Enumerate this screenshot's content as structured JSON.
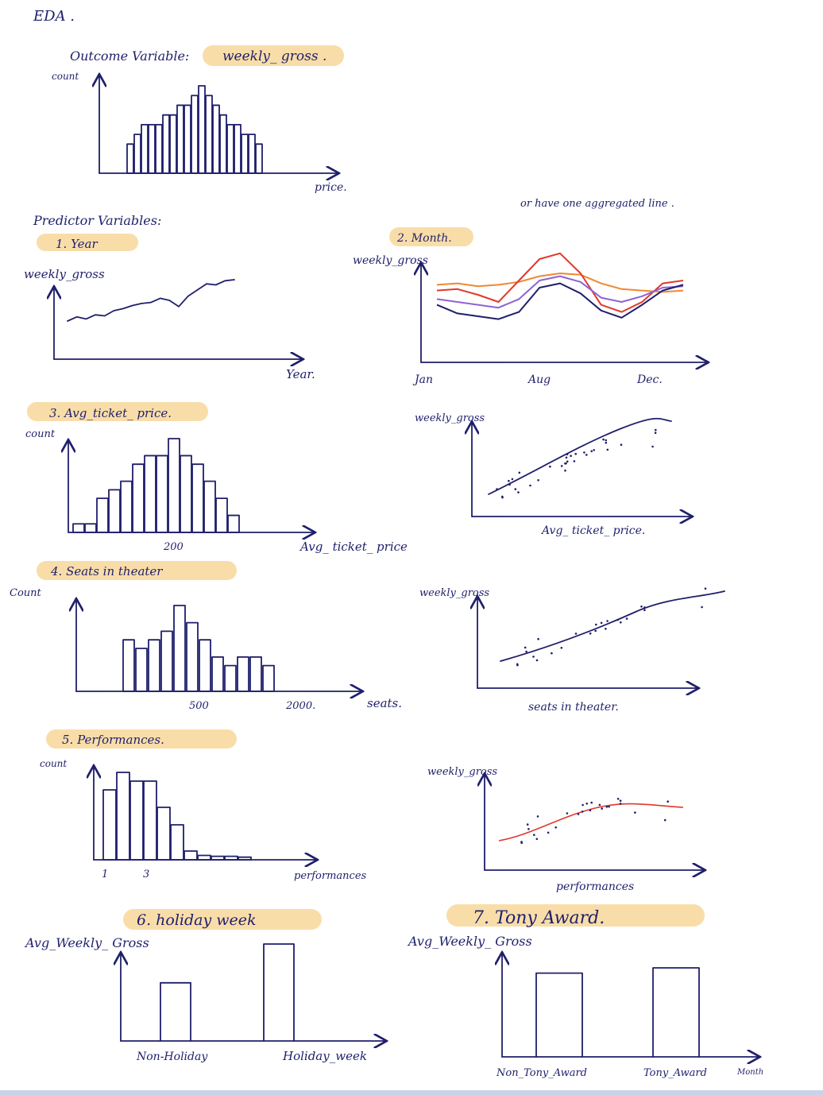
{
  "page": {
    "title": "EDA .",
    "outcome_label": "Outcome Variable:",
    "outcome_value": "weekly_ gross .",
    "predictors_label": "Predictor Variables:",
    "note": "or have one aggregated line ."
  },
  "colors": {
    "ink": "#1f1f6b",
    "highlight": "#f8d79a",
    "red": "#e0392b",
    "orange": "#f0882f",
    "purple": "#8d63d6",
    "navy": "#1f1f6b"
  },
  "chart_data": [
    {
      "id": "outcome-hist",
      "type": "bar",
      "ylabel": "count",
      "xlabel": "price.",
      "values": [
        3,
        4,
        5,
        5,
        5,
        6,
        6,
        7,
        7,
        8,
        9,
        8,
        7,
        6,
        5,
        5,
        4,
        4,
        3
      ]
    },
    {
      "id": "year-line",
      "type": "line",
      "heading": "1. Year",
      "ylabel": "weekly_gross",
      "xlabel": "Year.",
      "values": [
        2.0,
        2.4,
        2.2,
        2.6,
        2.5,
        3.0,
        3.2,
        3.5,
        3.7,
        3.8,
        4.2,
        4.0,
        3.4,
        4.4,
        5.0,
        5.6,
        5.5,
        5.9,
        6.0
      ]
    },
    {
      "id": "month-lines",
      "type": "line",
      "heading": "2. Month.",
      "ylabel": "weekly_gross",
      "x_ticks": [
        "Jan",
        "Aug",
        "Dec."
      ],
      "series": [
        {
          "color": "#f0882f",
          "values": [
            6.2,
            6.3,
            6.1,
            6.2,
            6.4,
            6.8,
            7.0,
            6.9,
            6.3,
            5.9,
            5.8,
            5.7,
            5.8
          ]
        },
        {
          "color": "#e0392b",
          "values": [
            5.8,
            5.9,
            5.5,
            5.0,
            6.5,
            8.0,
            8.4,
            7.0,
            4.8,
            4.3,
            5.0,
            6.3,
            6.5
          ]
        },
        {
          "color": "#8d63d6",
          "values": [
            5.2,
            5.0,
            4.8,
            4.6,
            5.2,
            6.5,
            6.8,
            6.4,
            5.3,
            5.0,
            5.4,
            6.0,
            6.1
          ]
        },
        {
          "color": "#1f1f6b",
          "values": [
            4.8,
            4.2,
            4.0,
            3.8,
            4.3,
            6.0,
            6.3,
            5.6,
            4.4,
            3.9,
            4.8,
            5.8,
            6.2
          ]
        }
      ]
    },
    {
      "id": "ticket-hist",
      "type": "bar",
      "heading": "3. Avg_ticket_ price.",
      "ylabel": "count",
      "xlabel": "Avg_ ticket_ price",
      "x_ticks": [
        "200"
      ],
      "values": [
        1,
        1,
        4,
        5,
        6,
        8,
        9,
        9,
        11,
        9,
        8,
        6,
        4,
        2
      ]
    },
    {
      "id": "ticket-scatter",
      "type": "scatter",
      "ylabel": "weekly_gross",
      "xlabel": "Avg_ ticket_ price."
    },
    {
      "id": "seats-hist",
      "type": "bar",
      "heading": "4. Seats in theater",
      "ylabel": "Count",
      "xlabel": "seats.",
      "x_ticks": [
        "500",
        "2000."
      ],
      "values": [
        6,
        5,
        6,
        7,
        10,
        8,
        6,
        4,
        3,
        4,
        4,
        3
      ]
    },
    {
      "id": "seats-scatter",
      "type": "scatter",
      "ylabel": "weekly_gross",
      "xlabel": "seats in theater."
    },
    {
      "id": "perf-hist",
      "type": "bar",
      "heading": "5. Performances.",
      "ylabel": "count",
      "xlabel": "performances",
      "x_ticks": [
        "1",
        "3"
      ],
      "values": [
        8,
        10,
        9,
        9,
        6,
        4,
        1,
        0.5,
        0.4,
        0.4,
        0.3
      ]
    },
    {
      "id": "perf-scatter",
      "type": "scatter",
      "ylabel": "weekly_gross",
      "xlabel": "performances"
    },
    {
      "id": "holiday-bar",
      "type": "bar",
      "heading": "6. holiday week",
      "ylabel": "Avg_Weekly_ Gross",
      "categories": [
        "Non-Holiday",
        "Holiday_week"
      ],
      "values": [
        6,
        10
      ]
    },
    {
      "id": "tony-bar",
      "type": "bar",
      "heading": "7. Tony Award.",
      "ylabel": "Avg_Weekly_ Gross",
      "categories": [
        "Non_Tony_Award",
        "Tony_Award"
      ],
      "extra_label": "Month",
      "values": [
        8,
        8.5
      ]
    }
  ]
}
